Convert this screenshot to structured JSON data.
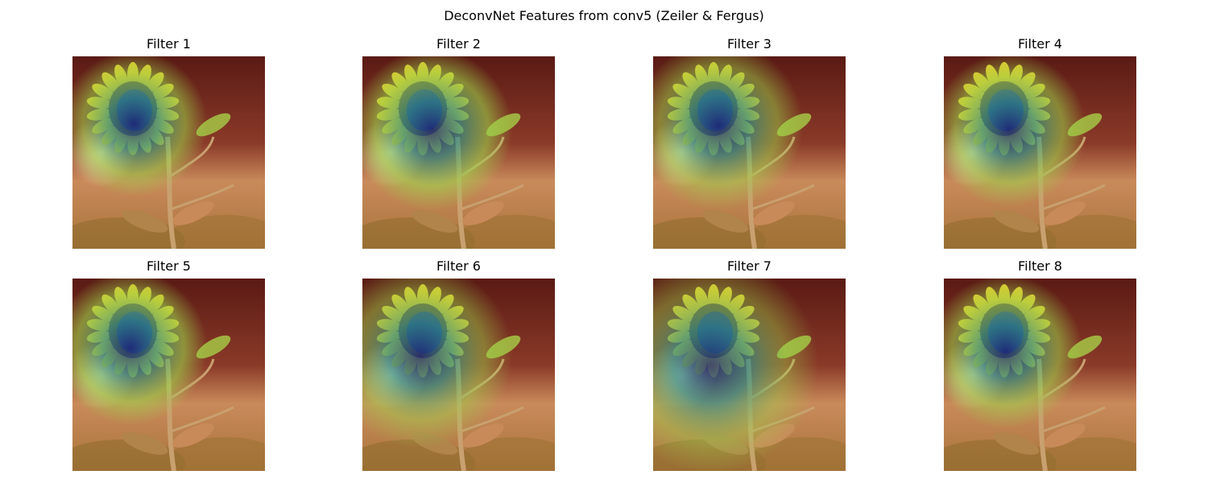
{
  "figure": {
    "title": "DeconvNet Features from conv5 (Zeiler & Fergus)"
  },
  "panels": [
    {
      "title": "Filter 1"
    },
    {
      "title": "Filter 2"
    },
    {
      "title": "Filter 3"
    },
    {
      "title": "Filter 4"
    },
    {
      "title": "Filter 5"
    },
    {
      "title": "Filter 6"
    },
    {
      "title": "Filter 7"
    },
    {
      "title": "Filter 8"
    }
  ],
  "image": {
    "subject": "sunflower",
    "overlay": "heatmap (blue = low/high activation on flower head, red = background)"
  },
  "colors": {
    "background_dark": "#5a1a14",
    "background_mid": "#8a3a28",
    "ground": "#c98a5a",
    "petal": "#e6c82a",
    "disk": "#2a2f7a",
    "heat_teal": "#2f8f8a",
    "heat_green": "#9bd24a"
  }
}
